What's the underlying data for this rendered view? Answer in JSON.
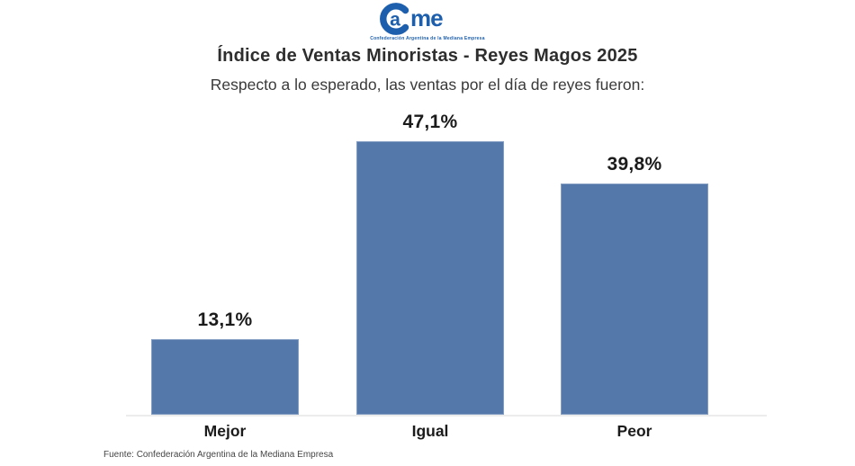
{
  "logo": {
    "name": "Came",
    "tagline": "Confederación Argentina de la Mediana Empresa",
    "brand_color": "#1d5fad"
  },
  "chart_data": {
    "type": "bar",
    "title": "Índice de Ventas Minoristas - Reyes Magos 2025",
    "subtitle": "Respecto a lo esperado, las ventas por el día de reyes fueron:",
    "categories": [
      "Mejor",
      "Igual",
      "Peor"
    ],
    "values": [
      13.1,
      47.1,
      39.8
    ],
    "value_labels": [
      "13,1%",
      "47,1%",
      "39,8%"
    ],
    "unit": "%",
    "bar_color": "#5578ab",
    "ylim": [
      0,
      50
    ],
    "grid": false,
    "legend": false,
    "value_labels_position": "above-bars",
    "axis_line_color": "#ececec"
  },
  "footer": {
    "source": "Fuente: Confederación Argentina de la Mediana Empresa"
  }
}
